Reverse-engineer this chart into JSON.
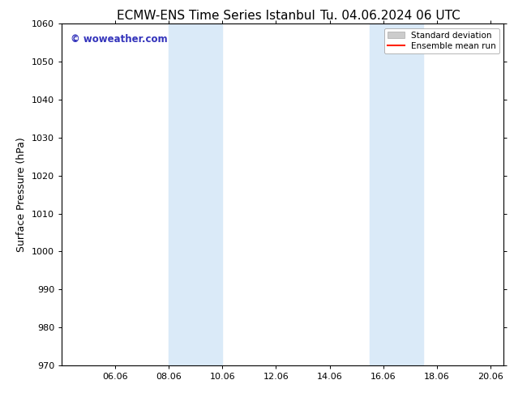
{
  "title_left": "ECMW-ENS Time Series Istanbul",
  "title_right": "Tu. 04.06.2024 06 UTC",
  "ylabel": "Surface Pressure (hPa)",
  "ylim": [
    970,
    1060
  ],
  "yticks": [
    970,
    980,
    990,
    1000,
    1010,
    1020,
    1030,
    1040,
    1050,
    1060
  ],
  "xlim_start": 4.0,
  "xlim_end": 20.5,
  "xtick_labels": [
    "06.06",
    "08.06",
    "10.06",
    "12.06",
    "14.06",
    "16.06",
    "18.06",
    "20.06"
  ],
  "xtick_positions": [
    6.0,
    8.0,
    10.0,
    12.0,
    14.0,
    16.0,
    18.0,
    20.0
  ],
  "shaded_regions": [
    {
      "x_start": 8.0,
      "x_end": 10.0,
      "color": "#daeaf8"
    },
    {
      "x_start": 15.5,
      "x_end": 17.5,
      "color": "#daeaf8"
    }
  ],
  "watermark_text": "© woweather.com",
  "watermark_color": "#3333bb",
  "watermark_fontsize": 8.5,
  "legend_std_dev_color": "#cccccc",
  "legend_std_dev_edge": "#aaaaaa",
  "legend_mean_run_color": "#ff2200",
  "background_color": "#ffffff",
  "plot_bg_color": "#ffffff",
  "title_fontsize": 11,
  "axis_label_fontsize": 9,
  "tick_fontsize": 8,
  "legend_fontsize": 7.5
}
